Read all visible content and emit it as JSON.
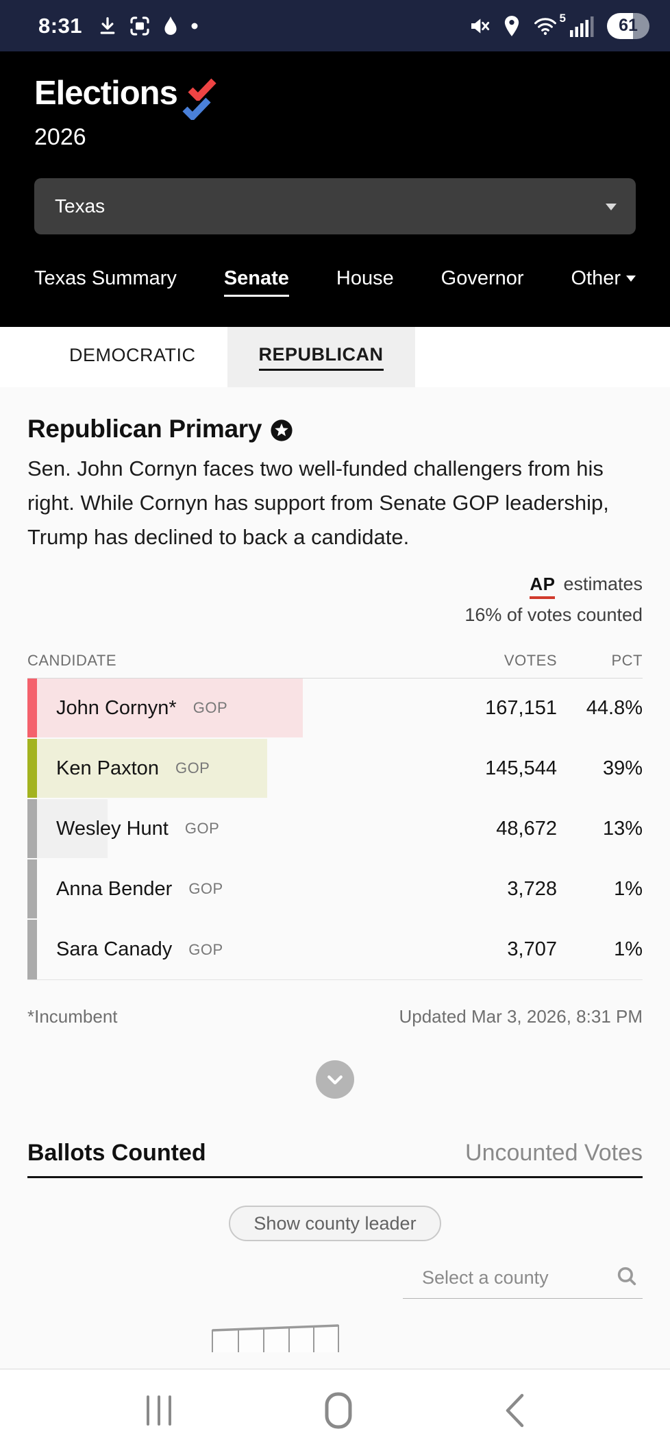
{
  "status_bar": {
    "time": "8:31",
    "wifi_label": "5",
    "battery_level": "61",
    "icons_left": [
      "download-icon",
      "screen-capture-icon",
      "water-drop-icon",
      "notification-dot-icon"
    ],
    "icons_right": [
      "mute-icon",
      "location-icon",
      "wifi-icon",
      "signal-icon",
      "battery-indicator"
    ]
  },
  "header": {
    "logo": "Elections",
    "year": "2026",
    "logo_check_colors": {
      "top": "#ee4444",
      "bottom": "#4a80d9"
    },
    "state_selector": {
      "value": "Texas"
    },
    "nav": [
      {
        "label": "Texas Summary",
        "active": false,
        "caret": false
      },
      {
        "label": "Senate",
        "active": true,
        "caret": false
      },
      {
        "label": "House",
        "active": false,
        "caret": false
      },
      {
        "label": "Governor",
        "active": false,
        "caret": false
      },
      {
        "label": "Other",
        "active": false,
        "caret": true
      }
    ]
  },
  "party_tabs": [
    {
      "label": "DEMOCRATIC",
      "active": false
    },
    {
      "label": "REPUBLICAN",
      "active": true
    }
  ],
  "race": {
    "title": "Republican Primary",
    "description": "Sen. John Cornyn faces two well-funded challengers from his right. While Cornyn has support from Senate GOP leadership, Trump has declined to back a candidate.",
    "ap_label": "AP",
    "estimates_label": "estimates",
    "counted_label": "16% of votes counted",
    "ap_underline_color": "#d13a2c"
  },
  "results_table": {
    "columns": {
      "candidate": "CANDIDATE",
      "votes": "VOTES",
      "pct": "PCT"
    },
    "rows": [
      {
        "name": "John Cornyn*",
        "party": "GOP",
        "votes": "167,151",
        "pct": "44.8%",
        "pct_value": 44.8,
        "bar_color": "#f4616c",
        "tint_color": "#f9e2e4"
      },
      {
        "name": "Ken Paxton",
        "party": "GOP",
        "votes": "145,544",
        "pct": "39%",
        "pct_value": 39,
        "bar_color": "#a3b31f",
        "tint_color": "#eff0d9"
      },
      {
        "name": "Wesley Hunt",
        "party": "GOP",
        "votes": "48,672",
        "pct": "13%",
        "pct_value": 13,
        "bar_color": "#ababab",
        "tint_color": "#f0f0f0"
      },
      {
        "name": "Anna Bender",
        "party": "GOP",
        "votes": "3,728",
        "pct": "1%",
        "pct_value": 1,
        "bar_color": "#ababab",
        "tint_color": "#f0f0f0"
      },
      {
        "name": "Sara Canady",
        "party": "GOP",
        "votes": "3,707",
        "pct": "1%",
        "pct_value": 1,
        "bar_color": "#ababab",
        "tint_color": "#f0f0f0"
      }
    ],
    "footnote": "*Incumbent",
    "updated": "Updated Mar 3, 2026, 8:31 PM"
  },
  "map_section": {
    "tabs": [
      {
        "label": "Ballots Counted",
        "active": true
      },
      {
        "label": "Uncounted Votes",
        "active": false
      }
    ],
    "county_leader_button": "Show county leader",
    "county_search_placeholder": "Select a county"
  },
  "android_nav": [
    "recents-icon",
    "home-icon",
    "back-icon"
  ]
}
